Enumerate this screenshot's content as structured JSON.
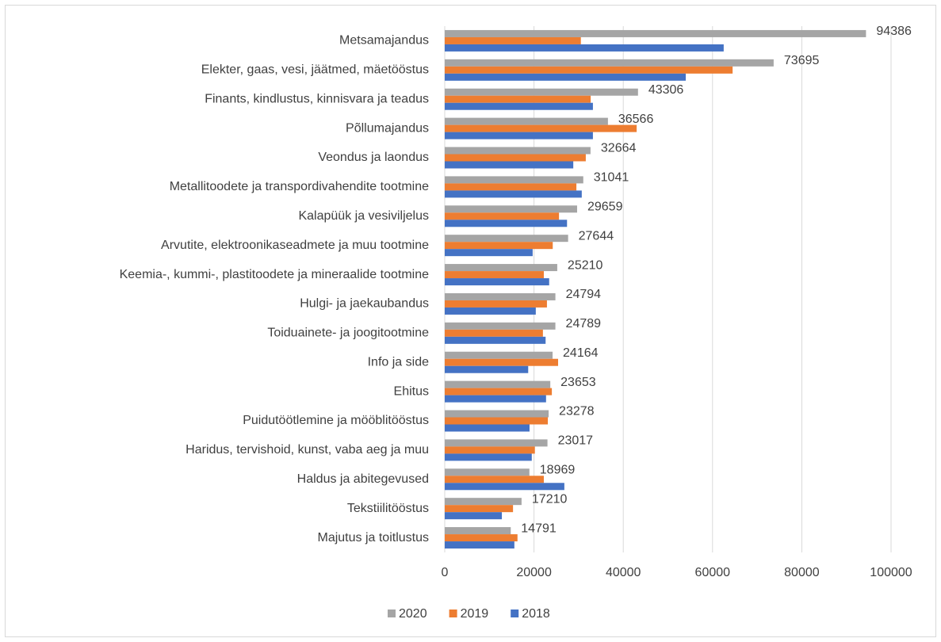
{
  "chart_data": {
    "type": "barh",
    "categories": [
      "Metsamajandus",
      "Elekter, gaas, vesi, jäätmed, mäetööstus",
      "Finants, kindlustus, kinnisvara ja teadus",
      "Põllumajandus",
      "Veondus ja laondus",
      "Metallitoodete ja transpordivahendite tootmine",
      "Kalapüük ja vesiviljelus",
      "Arvutite, elektroonikaseadmete ja muu tootmine",
      "Keemia-, kummi-, plastitoodete ja mineraalide tootmine",
      "Hulgi- ja jaekaubandus",
      "Toiduainete- ja joogitootmine",
      "Info ja side",
      "Ehitus",
      "Puidutöötlemine ja mööblitööstus",
      "Haridus, tervishoid, kunst, vaba aeg ja muu",
      "Haldus ja abitegevused",
      "Tekstiilitööstus",
      "Majutus ja toitlustus"
    ],
    "series": [
      {
        "name": "2020",
        "color": "#a5a5a5",
        "show_labels": true,
        "values": [
          94386,
          73695,
          43306,
          36566,
          32664,
          31041,
          29659,
          27644,
          25210,
          24794,
          24789,
          24164,
          23653,
          23278,
          23017,
          18969,
          17210,
          14791
        ]
      },
      {
        "name": "2019",
        "color": "#ed7d31",
        "values": [
          30500,
          64500,
          32700,
          43000,
          31600,
          29500,
          25600,
          24200,
          22200,
          22900,
          22000,
          25400,
          24000,
          23100,
          20200,
          22200,
          15300,
          16300
        ]
      },
      {
        "name": "2018",
        "color": "#4472c4",
        "values": [
          62500,
          54000,
          33200,
          33200,
          28800,
          30700,
          27400,
          19700,
          23400,
          20400,
          22600,
          18700,
          22700,
          19000,
          19500,
          26800,
          12800,
          15600
        ]
      }
    ],
    "xlim": [
      0,
      100000
    ],
    "xticks": [
      0,
      20000,
      40000,
      60000,
      80000,
      100000
    ],
    "grid": true,
    "legend": "bottom"
  }
}
